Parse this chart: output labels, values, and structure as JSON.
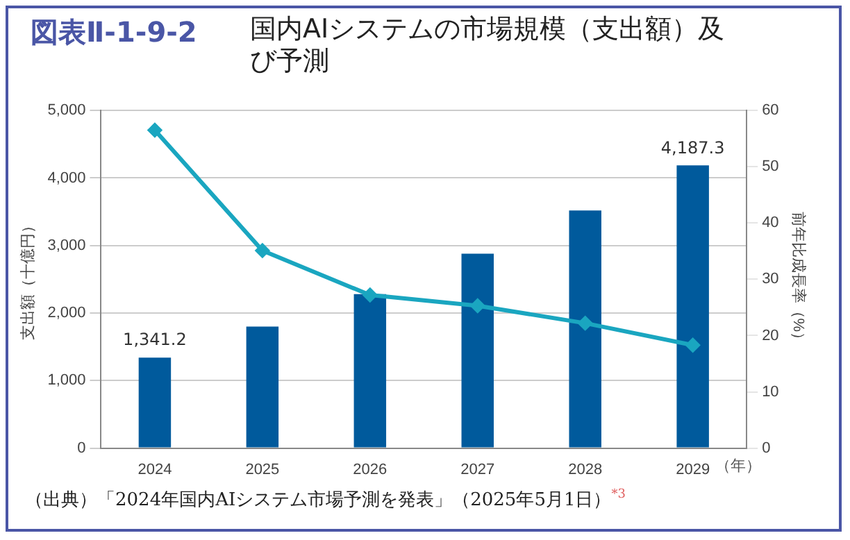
{
  "chart_data": {
    "type": "bar",
    "title": "図表Ⅱ-1-9-2",
    "subtitle": "国内AIシステムの市場規模（支出額）及び予測",
    "categories": [
      "2024",
      "2025",
      "2026",
      "2027",
      "2028",
      "2029"
    ],
    "xlabel": "（年）",
    "ylabel": "支出額（十億円）",
    "y2label": "前年比成長率（%）",
    "series": [
      {
        "color": "#005a9c",
        "values": [
          1341.2,
          1800,
          2280,
          2880,
          3520,
          4187.3
        ],
        "value_labels": [
          "1,341.2",
          null,
          null,
          null,
          null,
          "4,187.3"
        ]
      },
      {
        "type": "line",
        "axis": "y2",
        "color": "#1aa6c0",
        "values": [
          56.5,
          35.1,
          27.2,
          25.3,
          22.2,
          18.3
        ]
      }
    ],
    "ylim": [
      0,
      5000
    ],
    "yticks": [
      {
        "value": 0,
        "label": "0"
      },
      {
        "value": 1000,
        "label": "1,000"
      },
      {
        "value": 2000,
        "label": "2,000"
      },
      {
        "value": 3000,
        "label": "3,000"
      },
      {
        "value": 4000,
        "label": "4,000"
      },
      {
        "value": 5000,
        "label": "5,000"
      }
    ],
    "y2lim": [
      0,
      60
    ],
    "y2ticks": [
      0,
      10,
      20,
      30,
      40,
      50,
      60
    ],
    "grid": "y",
    "legend": false,
    "marker": "diamond",
    "line_style": "solid",
    "annotations": [
      "（出典）「2024年国内AIシステム市場予測を発表」（2025年5月1日）$^{*3}$"
    ]
  }
}
